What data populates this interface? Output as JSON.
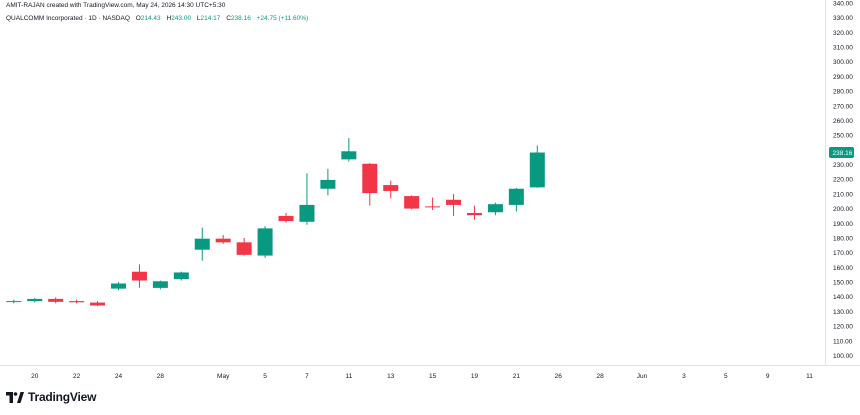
{
  "header": {
    "caption": "AMIT-RAJAN created with TradingView.com, May 24, 2026 14:30 UTC+5:30",
    "symbol": "QUALCOMM Incorporated · 1D · NASDAQ",
    "o_key": "O",
    "o_val": "214.43",
    "h_key": "H",
    "h_val": "243.00",
    "l_key": "L",
    "l_val": "214.17",
    "c_key": "C",
    "c_val": "238.16",
    "change": "+24.75 (+11.60%)"
  },
  "brand": {
    "name": "TradingView"
  },
  "colors": {
    "up": "#089981",
    "down": "#F23645",
    "axis_text": "#131722",
    "border": "#e0e3eb",
    "background": "#ffffff"
  },
  "chart_data": {
    "type": "candlestick",
    "price_axis": {
      "ylim": [
        93.5,
        342
      ],
      "ticks": [
        100,
        110,
        120,
        130,
        140,
        150,
        160,
        170,
        180,
        190,
        200,
        210,
        220,
        230,
        240,
        250,
        260,
        270,
        280,
        290,
        300,
        310,
        320,
        330,
        340
      ],
      "tick_labels": [
        "100.00",
        "110.00",
        "120.00",
        "130.00",
        "140.00",
        "150.00",
        "160.00",
        "170.00",
        "180.00",
        "190.00",
        "200.00",
        "210.00",
        "220.00",
        "230.00",
        "240.00",
        "250.00",
        "260.00",
        "270.00",
        "280.00",
        "290.00",
        "300.00",
        "310.00",
        "320.00",
        "330.00",
        "340.00"
      ],
      "last_price": 238.16,
      "last_price_label": "238.16"
    },
    "time_axis": {
      "tick_labels": [
        "20",
        "22",
        "24",
        "28",
        "May",
        "5",
        "7",
        "11",
        "13",
        "15",
        "19",
        "21",
        "26",
        "28",
        "Jun",
        "3",
        "5",
        "9",
        "11"
      ],
      "tick_slots": [
        1,
        3,
        5,
        7,
        10,
        12,
        14,
        16,
        18,
        20,
        22,
        24,
        26,
        28,
        30,
        32,
        34,
        36,
        38
      ],
      "slot_count": 41
    },
    "candles": [
      {
        "o": 136.5,
        "h": 138.0,
        "l": 135.5,
        "c": 137.0
      },
      {
        "o": 137.0,
        "h": 139.0,
        "l": 136.0,
        "c": 138.5
      },
      {
        "o": 138.5,
        "h": 139.5,
        "l": 135.5,
        "c": 136.5
      },
      {
        "o": 137.0,
        "h": 138.0,
        "l": 135.5,
        "c": 136.2
      },
      {
        "o": 136.0,
        "h": 137.0,
        "l": 133.5,
        "c": 134.0
      },
      {
        "o": 145.5,
        "h": 150.0,
        "l": 144.5,
        "c": 149.0
      },
      {
        "o": 157.0,
        "h": 162.0,
        "l": 146.0,
        "c": 151.0
      },
      {
        "o": 146.0,
        "h": 151.0,
        "l": 145.0,
        "c": 150.5
      },
      {
        "o": 152.0,
        "h": 157.0,
        "l": 151.0,
        "c": 156.5
      },
      {
        "o": 172.0,
        "h": 187.0,
        "l": 164.5,
        "c": 179.5
      },
      {
        "o": 179.5,
        "h": 182.0,
        "l": 176.0,
        "c": 177.0
      },
      {
        "o": 177.0,
        "h": 180.0,
        "l": 168.0,
        "c": 168.5
      },
      {
        "o": 168.0,
        "h": 188.0,
        "l": 166.5,
        "c": 186.5
      },
      {
        "o": 195.0,
        "h": 197.0,
        "l": 190.5,
        "c": 191.5
      },
      {
        "o": 191.0,
        "h": 224.0,
        "l": 189.0,
        "c": 202.5
      },
      {
        "o": 213.5,
        "h": 227.0,
        "l": 209.0,
        "c": 219.5
      },
      {
        "o": 233.5,
        "h": 248.0,
        "l": 232.0,
        "c": 239.0
      },
      {
        "o": 230.5,
        "h": 231.0,
        "l": 202.0,
        "c": 210.5
      },
      {
        "o": 216.0,
        "h": 219.0,
        "l": 207.0,
        "c": 212.0
      },
      {
        "o": 208.5,
        "h": 209.0,
        "l": 199.5,
        "c": 200.0
      },
      {
        "o": 201.5,
        "h": 207.5,
        "l": 199.0,
        "c": 201.0
      },
      {
        "o": 206.0,
        "h": 210.0,
        "l": 195.0,
        "c": 202.5
      },
      {
        "o": 197.0,
        "h": 202.0,
        "l": 192.5,
        "c": 195.5
      },
      {
        "o": 197.5,
        "h": 204.0,
        "l": 195.5,
        "c": 203.0
      },
      {
        "o": 202.5,
        "h": 214.0,
        "l": 198.0,
        "c": 213.5
      },
      {
        "o": 214.43,
        "h": 243.0,
        "l": 214.17,
        "c": 238.16
      }
    ]
  }
}
